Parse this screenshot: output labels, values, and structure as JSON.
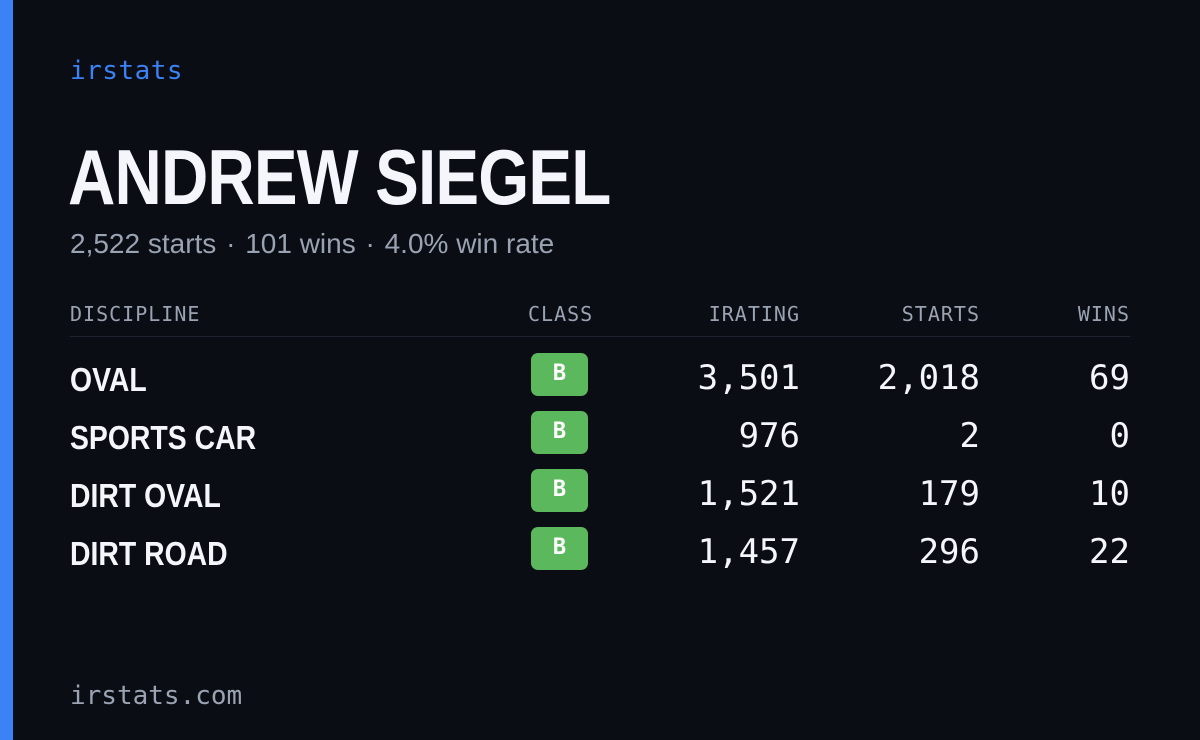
{
  "colors": {
    "background": "#0a0d14",
    "accent": "#3b82f6",
    "muted": "#9aa3b2",
    "class_b": "#5cb85c"
  },
  "brand": "irstats",
  "driver": {
    "name": "ANDREW SIEGEL",
    "summary": {
      "starts": "2,522 starts",
      "wins": "101 wins",
      "win_rate": "4.0% win rate",
      "separator": "·"
    }
  },
  "table": {
    "headers": {
      "discipline": "DISCIPLINE",
      "class": "CLASS",
      "irating": "IRATING",
      "starts": "STARTS",
      "wins": "WINS"
    },
    "rows": [
      {
        "discipline": "OVAL",
        "class": "B",
        "irating": "3,501",
        "starts": "2,018",
        "wins": "69"
      },
      {
        "discipline": "SPORTS CAR",
        "class": "B",
        "irating": "976",
        "starts": "2",
        "wins": "0"
      },
      {
        "discipline": "DIRT OVAL",
        "class": "B",
        "irating": "1,521",
        "starts": "179",
        "wins": "10"
      },
      {
        "discipline": "DIRT ROAD",
        "class": "B",
        "irating": "1,457",
        "starts": "296",
        "wins": "22"
      }
    ]
  },
  "footer": "irstats.com"
}
